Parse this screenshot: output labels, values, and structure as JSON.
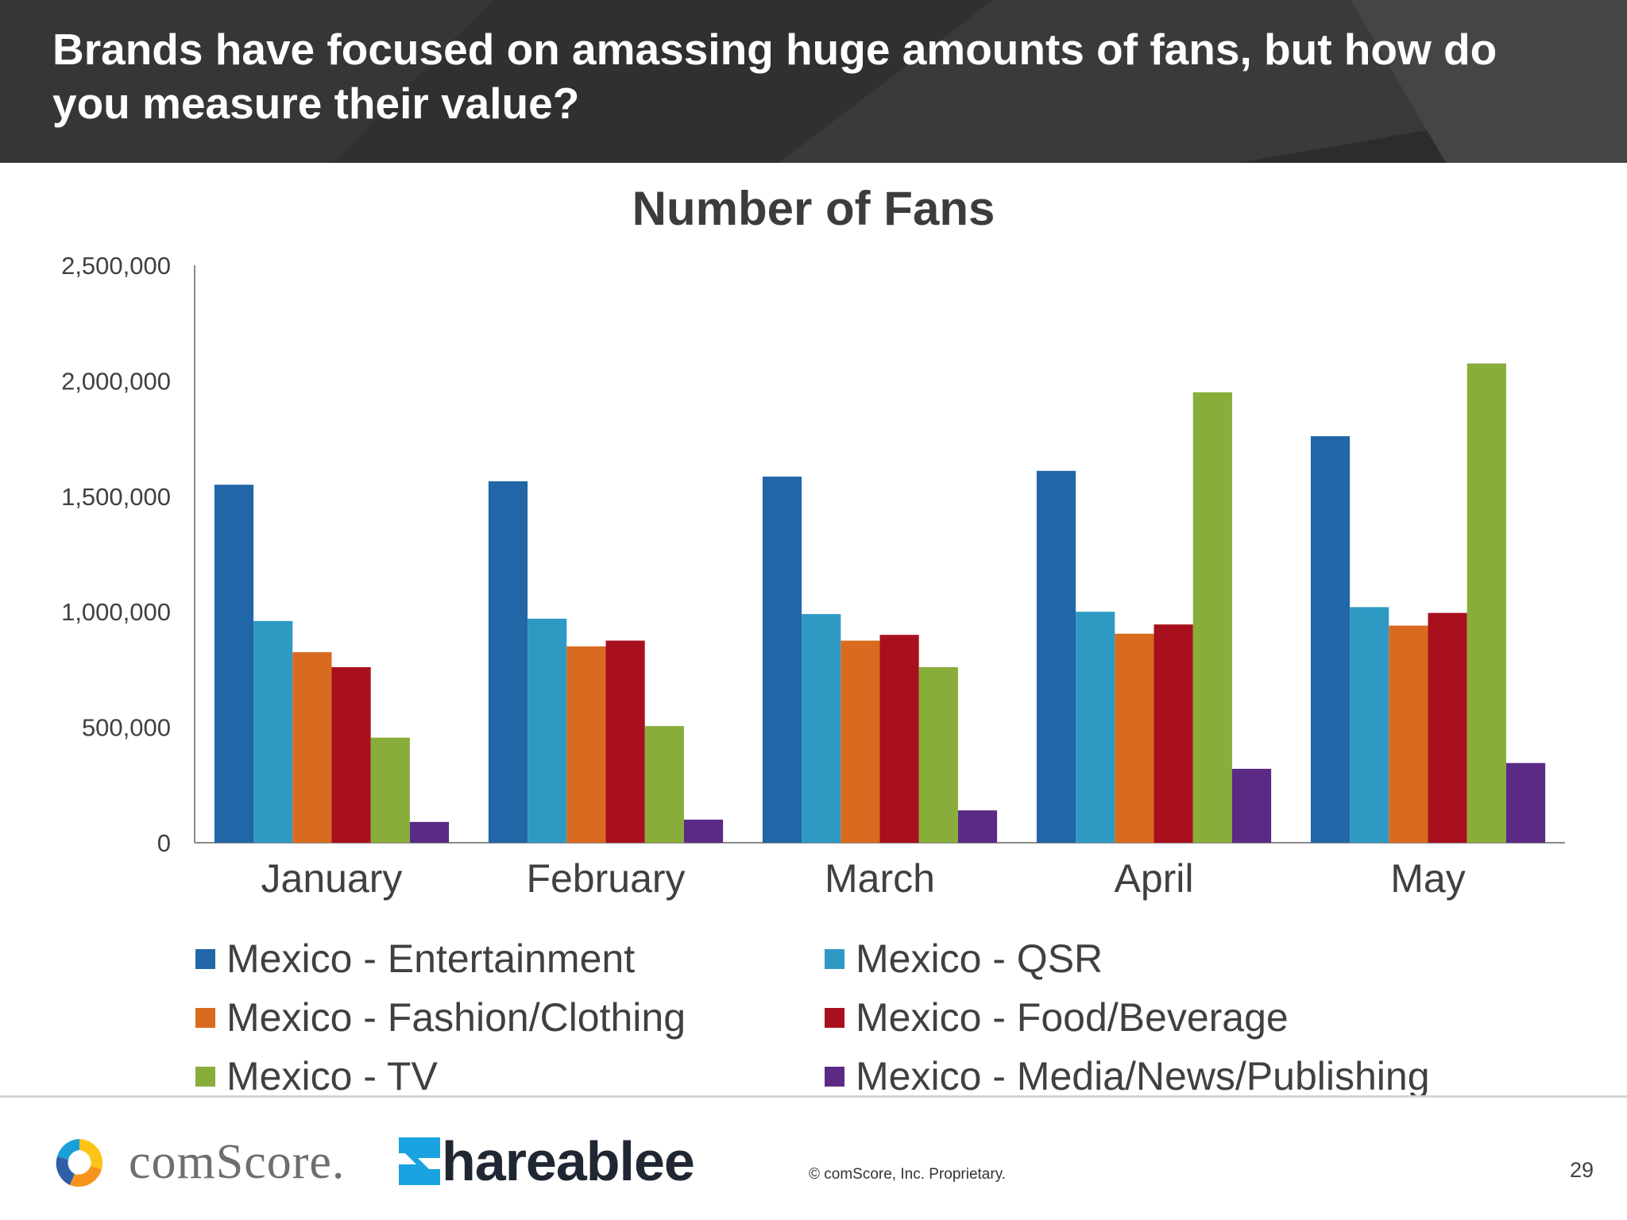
{
  "header": {
    "title": "Brands have focused on amassing huge amounts of fans, but how do you measure their value?"
  },
  "chart_data": {
    "type": "bar",
    "title": "Number of Fans",
    "xlabel": "",
    "ylabel": "",
    "ylim": [
      0,
      2500000
    ],
    "yticks": [
      {
        "value": 0,
        "label": "0"
      },
      {
        "value": 500000,
        "label": "500,000"
      },
      {
        "value": 1000000,
        "label": "1,000,000"
      },
      {
        "value": 1500000,
        "label": "1,500,000"
      },
      {
        "value": 2000000,
        "label": "2,000,000"
      },
      {
        "value": 2500000,
        "label": "2,500,000"
      }
    ],
    "grid": false,
    "legend_position": "bottom",
    "categories": [
      "January",
      "February",
      "March",
      "April",
      "May"
    ],
    "series": [
      {
        "name": "Mexico - Entertainment",
        "color": "#2166a6",
        "values": [
          1550000,
          1565000,
          1585000,
          1610000,
          1760000
        ]
      },
      {
        "name": "Mexico - QSR",
        "color": "#2e9ac4",
        "values": [
          960000,
          970000,
          990000,
          1000000,
          1020000
        ]
      },
      {
        "name": "Mexico - Fashion/Clothing",
        "color": "#d96b20",
        "values": [
          825000,
          850000,
          875000,
          905000,
          940000
        ]
      },
      {
        "name": "Mexico - Food/Beverage",
        "color": "#a8101d",
        "values": [
          760000,
          875000,
          900000,
          945000,
          995000
        ]
      },
      {
        "name": "Mexico - TV",
        "color": "#88ad3b",
        "values": [
          455000,
          505000,
          760000,
          1950000,
          2075000
        ]
      },
      {
        "name": "Mexico - Media/News/Publishing",
        "color": "#5b2a84",
        "values": [
          90000,
          100000,
          140000,
          320000,
          345000
        ]
      }
    ]
  },
  "footer": {
    "comscore_wordmark": "comScore.",
    "shareablee_wordmark": "hareablee",
    "copyright": "© comScore, Inc.     Proprietary.",
    "page_number": "29"
  }
}
